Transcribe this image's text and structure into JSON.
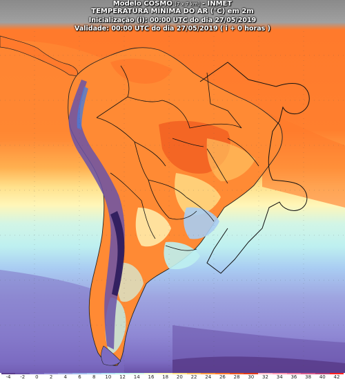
{
  "header": {
    "model": "Modelo COSMO",
    "resolution": "[7 x 7 km]",
    "institute": "- INMET",
    "variable": "TEMPERATURA MÍNIMA DO AR (°C) em 2m",
    "init": "Inicialização (i): 00:00 UTC do dia 27/05/2019",
    "valid": "Validade: 00:00 UTC do dia 27/05/2019  ( i + 0 horas )"
  },
  "colorbar": {
    "labels": [
      "-4",
      "-2",
      "0",
      "2",
      "4",
      "6",
      "8",
      "10",
      "12",
      "14",
      "16",
      "18",
      "20",
      "22",
      "24",
      "26",
      "28",
      "30",
      "32",
      "34",
      "36",
      "38",
      "40",
      "42"
    ],
    "colors": [
      "#5a3d8c",
      "#6a52a8",
      "#7c6cc2",
      "#8f88d4",
      "#9ea4e0",
      "#9fb8ea",
      "#a9ccf2",
      "#b3e0f5",
      "#bef0f0",
      "#d2f5e6",
      "#f0f8d0",
      "#fff6b8",
      "#ffe08a",
      "#ffc060",
      "#ff9c42",
      "#ff7a2c",
      "#f0571e",
      "#e23a18",
      "#ffb8c8",
      "#ff9ab4",
      "#f07aa0",
      "#d85c8c",
      "#b84278",
      "#ff2020"
    ]
  }
}
